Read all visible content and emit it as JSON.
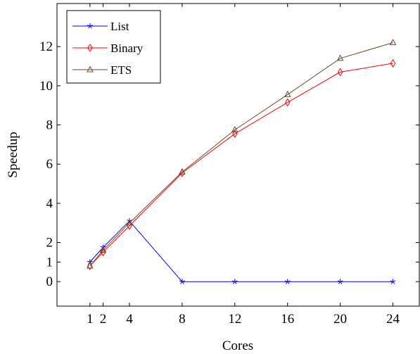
{
  "chart_data": {
    "type": "line",
    "title": "",
    "xlabel": "Cores",
    "ylabel": "Speedup",
    "x": [
      1,
      2,
      4,
      8,
      12,
      16,
      20,
      24
    ],
    "xticks": [
      1,
      2,
      4,
      8,
      12,
      16,
      20,
      24
    ],
    "yticks": [
      0,
      1,
      2,
      4,
      6,
      8,
      10,
      12
    ],
    "xlim": [
      -1.5,
      26
    ],
    "ylim": [
      -1.25,
      14.2
    ],
    "grid": false,
    "legend_position": "top-left",
    "series": [
      {
        "name": "List",
        "color": "#0000ff",
        "marker": "star",
        "values": [
          1.0,
          1.75,
          3.1,
          0.0,
          0.0,
          0.0,
          0.0,
          0.0
        ]
      },
      {
        "name": "Binary",
        "color": "#ff0000",
        "marker": "diamond",
        "values": [
          0.8,
          1.5,
          2.85,
          5.55,
          7.55,
          9.15,
          10.7,
          11.15
        ]
      },
      {
        "name": "ETS",
        "color": "#6b4a2a",
        "marker": "triangle",
        "values": [
          0.8,
          1.6,
          3.0,
          5.6,
          7.75,
          9.55,
          11.4,
          12.2
        ]
      }
    ]
  }
}
